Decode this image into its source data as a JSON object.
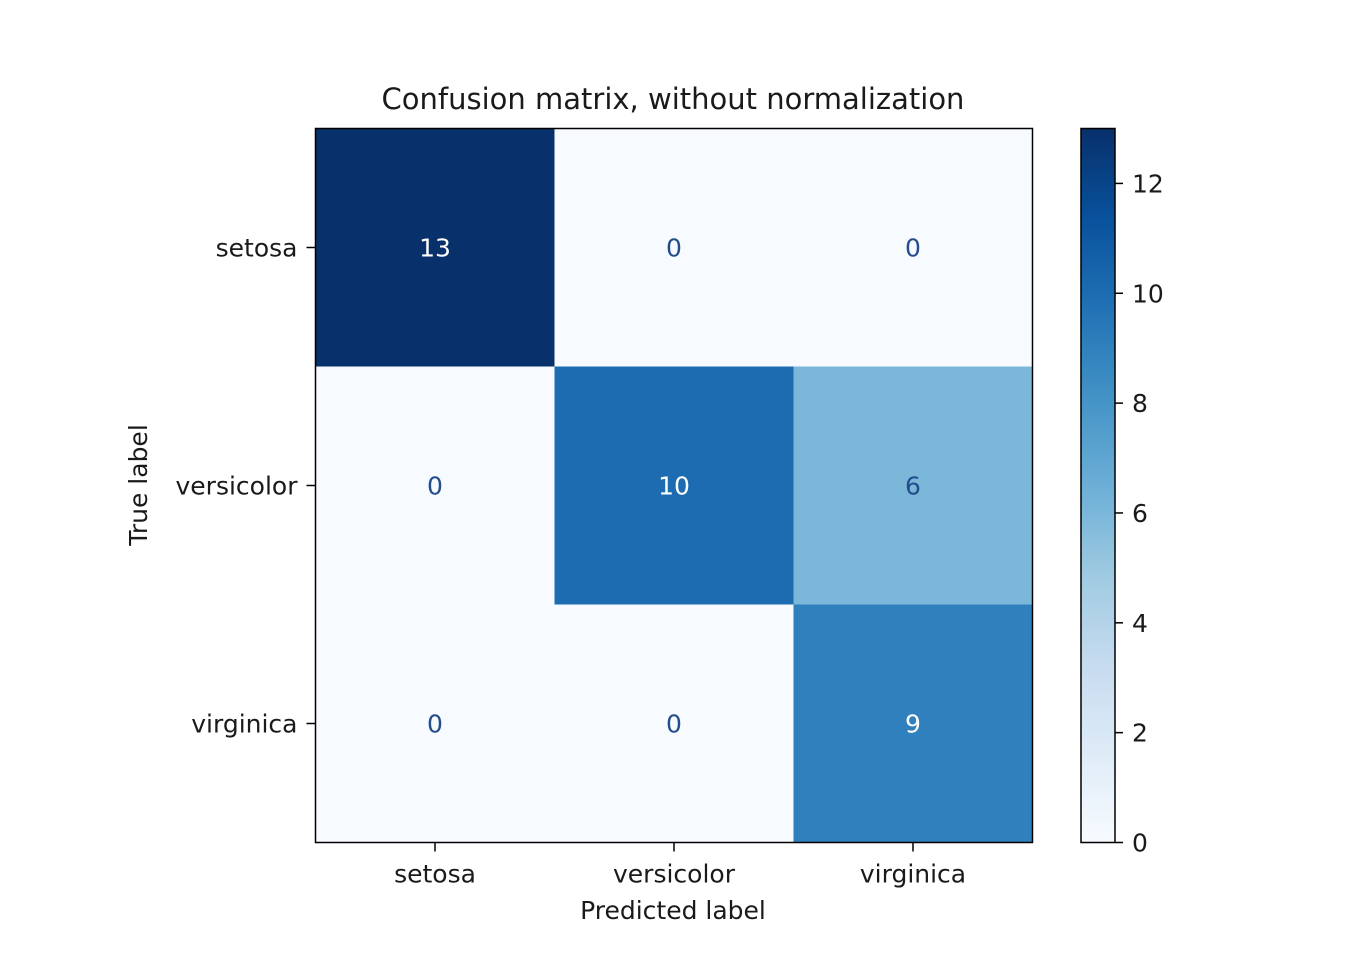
{
  "chart_data": {
    "type": "heatmap",
    "title": "Confusion matrix, without normalization",
    "xlabel": "Predicted label",
    "ylabel": "True label",
    "x_categories": [
      "setosa",
      "versicolor",
      "virginica"
    ],
    "y_categories": [
      "setosa",
      "versicolor",
      "virginica"
    ],
    "matrix": [
      [
        13,
        0,
        0
      ],
      [
        0,
        10,
        6
      ],
      [
        0,
        0,
        9
      ]
    ],
    "colormap": "Blues",
    "colorbar": {
      "range": [
        0,
        13
      ],
      "ticks": [
        0,
        2,
        4,
        6,
        8,
        10,
        12
      ]
    },
    "text_colors": {
      "dark_cell": "#ffffff",
      "light_cell": "#234d8b"
    }
  }
}
